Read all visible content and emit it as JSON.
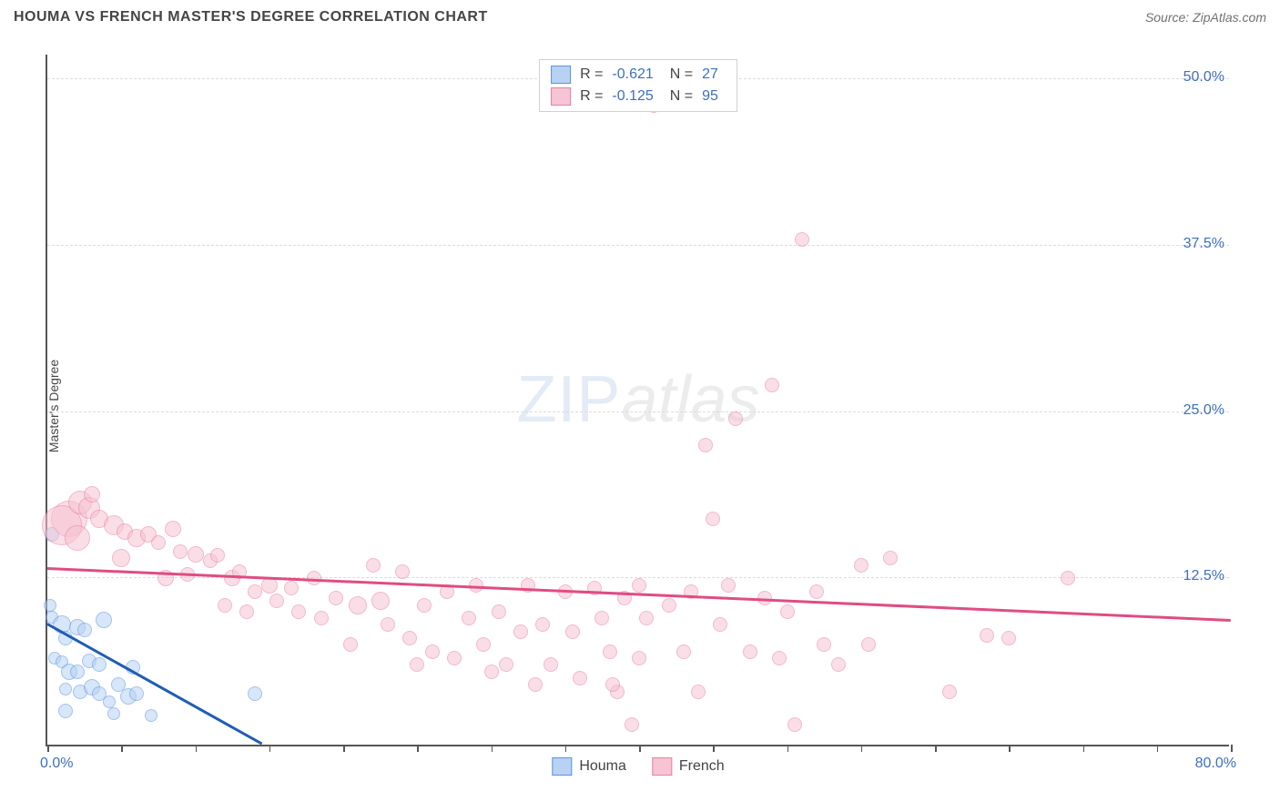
{
  "title": "HOUMA VS FRENCH MASTER'S DEGREE CORRELATION CHART",
  "source_label": "Source: ZipAtlas.com",
  "ylabel": "Master's Degree",
  "watermark": {
    "zip": "ZIP",
    "atlas": "atlas"
  },
  "chart": {
    "type": "scatter",
    "xlim": [
      0,
      80
    ],
    "ylim": [
      0,
      52
    ],
    "x_min_label": "0.0%",
    "x_max_label": "80.0%",
    "x_tick_step": 5,
    "y_gridlines": [
      {
        "y": 12.5,
        "label": "12.5%"
      },
      {
        "y": 25.0,
        "label": "25.0%"
      },
      {
        "y": 37.5,
        "label": "37.5%"
      },
      {
        "y": 50.0,
        "label": "50.0%"
      }
    ],
    "series": [
      {
        "name": "Houma",
        "fill": "#b7d2f3",
        "stroke": "#5c93de",
        "fill_opacity": 0.55,
        "trend_color": "#1f5db5",
        "R": "-0.621",
        "N": "27",
        "trend": {
          "x1": 0,
          "y1": 9.0,
          "x2": 14.5,
          "y2": 0
        },
        "points": [
          {
            "x": 0.3,
            "y": 15.8,
            "r": 8
          },
          {
            "x": 0.2,
            "y": 10.5,
            "r": 7
          },
          {
            "x": 0.3,
            "y": 9.6,
            "r": 7
          },
          {
            "x": 1.0,
            "y": 9.0,
            "r": 10
          },
          {
            "x": 1.2,
            "y": 8.0,
            "r": 8
          },
          {
            "x": 2.0,
            "y": 8.8,
            "r": 9
          },
          {
            "x": 2.5,
            "y": 8.6,
            "r": 8
          },
          {
            "x": 0.5,
            "y": 6.5,
            "r": 7
          },
          {
            "x": 1.0,
            "y": 6.2,
            "r": 7
          },
          {
            "x": 1.5,
            "y": 5.5,
            "r": 9
          },
          {
            "x": 2.0,
            "y": 5.5,
            "r": 8
          },
          {
            "x": 2.8,
            "y": 6.3,
            "r": 8
          },
          {
            "x": 3.5,
            "y": 6.0,
            "r": 8
          },
          {
            "x": 3.8,
            "y": 9.4,
            "r": 9
          },
          {
            "x": 1.2,
            "y": 4.2,
            "r": 7
          },
          {
            "x": 2.2,
            "y": 4.0,
            "r": 8
          },
          {
            "x": 3.0,
            "y": 4.3,
            "r": 9
          },
          {
            "x": 3.5,
            "y": 3.8,
            "r": 8
          },
          {
            "x": 4.2,
            "y": 3.2,
            "r": 7
          },
          {
            "x": 4.8,
            "y": 4.5,
            "r": 8
          },
          {
            "x": 5.5,
            "y": 3.6,
            "r": 9
          },
          {
            "x": 6.0,
            "y": 3.8,
            "r": 8
          },
          {
            "x": 5.8,
            "y": 5.8,
            "r": 8
          },
          {
            "x": 1.2,
            "y": 2.5,
            "r": 8
          },
          {
            "x": 4.5,
            "y": 2.3,
            "r": 7
          },
          {
            "x": 7.0,
            "y": 2.2,
            "r": 7
          },
          {
            "x": 14.0,
            "y": 3.8,
            "r": 8
          }
        ]
      },
      {
        "name": "French",
        "fill": "#f6c4d3",
        "stroke": "#e97fa5",
        "fill_opacity": 0.55,
        "trend_color": "#e04c83",
        "R": "-0.125",
        "N": "95",
        "trend": {
          "x1": 0,
          "y1": 13.2,
          "x2": 80,
          "y2": 9.3
        },
        "points": [
          {
            "x": 1.5,
            "y": 17.0,
            "r": 20
          },
          {
            "x": 1.0,
            "y": 16.5,
            "r": 22
          },
          {
            "x": 2.2,
            "y": 18.2,
            "r": 13
          },
          {
            "x": 2.8,
            "y": 17.8,
            "r": 12
          },
          {
            "x": 3.5,
            "y": 17.0,
            "r": 10
          },
          {
            "x": 3.0,
            "y": 18.8,
            "r": 9
          },
          {
            "x": 2.0,
            "y": 15.5,
            "r": 14
          },
          {
            "x": 4.5,
            "y": 16.5,
            "r": 11
          },
          {
            "x": 5.2,
            "y": 16.0,
            "r": 9
          },
          {
            "x": 6.0,
            "y": 15.5,
            "r": 10
          },
          {
            "x": 6.8,
            "y": 15.8,
            "r": 9
          },
          {
            "x": 7.5,
            "y": 15.2,
            "r": 8
          },
          {
            "x": 5.0,
            "y": 14.0,
            "r": 10
          },
          {
            "x": 8.5,
            "y": 16.2,
            "r": 9
          },
          {
            "x": 9.0,
            "y": 14.5,
            "r": 8
          },
          {
            "x": 10.0,
            "y": 14.3,
            "r": 9
          },
          {
            "x": 11.0,
            "y": 13.8,
            "r": 8
          },
          {
            "x": 8.0,
            "y": 12.5,
            "r": 9
          },
          {
            "x": 9.5,
            "y": 12.8,
            "r": 8
          },
          {
            "x": 11.5,
            "y": 14.2,
            "r": 8
          },
          {
            "x": 12.5,
            "y": 12.5,
            "r": 9
          },
          {
            "x": 13.0,
            "y": 13.0,
            "r": 8
          },
          {
            "x": 14.0,
            "y": 11.5,
            "r": 8
          },
          {
            "x": 15.0,
            "y": 12.0,
            "r": 9
          },
          {
            "x": 12.0,
            "y": 10.5,
            "r": 8
          },
          {
            "x": 13.5,
            "y": 10.0,
            "r": 8
          },
          {
            "x": 15.5,
            "y": 10.8,
            "r": 8
          },
          {
            "x": 16.5,
            "y": 11.8,
            "r": 8
          },
          {
            "x": 17.0,
            "y": 10.0,
            "r": 8
          },
          {
            "x": 18.0,
            "y": 12.5,
            "r": 8
          },
          {
            "x": 18.5,
            "y": 9.5,
            "r": 8
          },
          {
            "x": 19.5,
            "y": 11.0,
            "r": 8
          },
          {
            "x": 20.5,
            "y": 7.5,
            "r": 8
          },
          {
            "x": 21.0,
            "y": 10.5,
            "r": 10
          },
          {
            "x": 22.0,
            "y": 13.5,
            "r": 8
          },
          {
            "x": 22.5,
            "y": 10.8,
            "r": 10
          },
          {
            "x": 23.0,
            "y": 9.0,
            "r": 8
          },
          {
            "x": 24.0,
            "y": 13.0,
            "r": 8
          },
          {
            "x": 24.5,
            "y": 8.0,
            "r": 8
          },
          {
            "x": 25.0,
            "y": 6.0,
            "r": 8
          },
          {
            "x": 25.5,
            "y": 10.5,
            "r": 8
          },
          {
            "x": 26.0,
            "y": 7.0,
            "r": 8
          },
          {
            "x": 27.0,
            "y": 11.5,
            "r": 8
          },
          {
            "x": 27.5,
            "y": 6.5,
            "r": 8
          },
          {
            "x": 28.5,
            "y": 9.5,
            "r": 8
          },
          {
            "x": 29.0,
            "y": 12.0,
            "r": 8
          },
          {
            "x": 29.5,
            "y": 7.5,
            "r": 8
          },
          {
            "x": 30.0,
            "y": 5.5,
            "r": 8
          },
          {
            "x": 30.5,
            "y": 10.0,
            "r": 8
          },
          {
            "x": 31.0,
            "y": 6.0,
            "r": 8
          },
          {
            "x": 32.0,
            "y": 8.5,
            "r": 8
          },
          {
            "x": 32.5,
            "y": 12.0,
            "r": 8
          },
          {
            "x": 33.0,
            "y": 4.5,
            "r": 8
          },
          {
            "x": 33.5,
            "y": 9.0,
            "r": 8
          },
          {
            "x": 34.0,
            "y": 6.0,
            "r": 8
          },
          {
            "x": 35.0,
            "y": 11.5,
            "r": 8
          },
          {
            "x": 35.5,
            "y": 8.5,
            "r": 8
          },
          {
            "x": 36.0,
            "y": 5.0,
            "r": 8
          },
          {
            "x": 37.0,
            "y": 11.8,
            "r": 8
          },
          {
            "x": 37.5,
            "y": 9.5,
            "r": 8
          },
          {
            "x": 38.0,
            "y": 7.0,
            "r": 8
          },
          {
            "x": 38.5,
            "y": 4.0,
            "r": 8
          },
          {
            "x": 39.0,
            "y": 11.0,
            "r": 8
          },
          {
            "x": 39.5,
            "y": 1.5,
            "r": 8
          },
          {
            "x": 38.2,
            "y": 4.5,
            "r": 8
          },
          {
            "x": 40.0,
            "y": 6.5,
            "r": 8
          },
          {
            "x": 40.5,
            "y": 9.5,
            "r": 8
          },
          {
            "x": 40.0,
            "y": 12.0,
            "r": 8
          },
          {
            "x": 41.0,
            "y": 48.0,
            "r": 8
          },
          {
            "x": 42.0,
            "y": 10.5,
            "r": 8
          },
          {
            "x": 43.0,
            "y": 7.0,
            "r": 8
          },
          {
            "x": 43.5,
            "y": 11.5,
            "r": 8
          },
          {
            "x": 44.0,
            "y": 4.0,
            "r": 8
          },
          {
            "x": 45.0,
            "y": 17.0,
            "r": 8
          },
          {
            "x": 45.5,
            "y": 9.0,
            "r": 8
          },
          {
            "x": 44.5,
            "y": 22.5,
            "r": 8
          },
          {
            "x": 46.0,
            "y": 12.0,
            "r": 8
          },
          {
            "x": 46.5,
            "y": 24.5,
            "r": 8
          },
          {
            "x": 47.5,
            "y": 7.0,
            "r": 8
          },
          {
            "x": 48.5,
            "y": 11.0,
            "r": 8
          },
          {
            "x": 49.0,
            "y": 27.0,
            "r": 8
          },
          {
            "x": 49.5,
            "y": 6.5,
            "r": 8
          },
          {
            "x": 50.0,
            "y": 10.0,
            "r": 8
          },
          {
            "x": 50.5,
            "y": 1.5,
            "r": 8
          },
          {
            "x": 51.0,
            "y": 38.0,
            "r": 8
          },
          {
            "x": 52.0,
            "y": 11.5,
            "r": 8
          },
          {
            "x": 52.5,
            "y": 7.5,
            "r": 8
          },
          {
            "x": 53.5,
            "y": 6.0,
            "r": 8
          },
          {
            "x": 55.0,
            "y": 13.5,
            "r": 8
          },
          {
            "x": 55.5,
            "y": 7.5,
            "r": 8
          },
          {
            "x": 57.0,
            "y": 14.0,
            "r": 8
          },
          {
            "x": 61.0,
            "y": 4.0,
            "r": 8
          },
          {
            "x": 63.5,
            "y": 8.2,
            "r": 8
          },
          {
            "x": 65.0,
            "y": 8.0,
            "r": 8
          },
          {
            "x": 69.0,
            "y": 12.5,
            "r": 8
          }
        ]
      }
    ]
  }
}
